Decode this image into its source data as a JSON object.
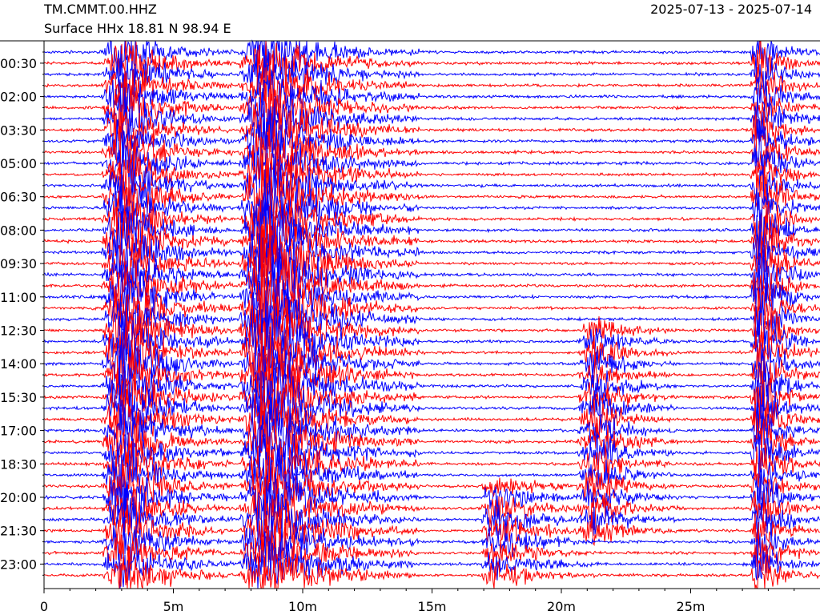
{
  "header": {
    "station": "TM.CMMT.00.HHZ",
    "channel": "Surface HHx  18.81 N 98.94 E",
    "date_range": "2025-07-13 - 2025-07-14"
  },
  "colors": {
    "blue": "#0000ff",
    "red": "#ff0000",
    "axis": "#000000"
  },
  "chart_data": {
    "type": "line",
    "title": "TM.CMMT.00.HHZ",
    "subtitle": "Surface HHx  18.81 N 98.94 E",
    "xlabel": "",
    "ylabel": "",
    "x_unit": "minutes",
    "xlim": [
      0,
      30
    ],
    "x_ticks": [
      {
        "value": 0,
        "label": "0"
      },
      {
        "value": 5,
        "label": "5m"
      },
      {
        "value": 10,
        "label": "10m"
      },
      {
        "value": 15,
        "label": "15m"
      },
      {
        "value": 20,
        "label": "20m"
      },
      {
        "value": 25,
        "label": "25m"
      }
    ],
    "traces_per_day": 48,
    "trace_interval_minutes": 30,
    "trace_colors": [
      "#0000ff",
      "#ff0000"
    ],
    "y_ticks": [
      {
        "trace": 1,
        "label": "00:30"
      },
      {
        "trace": 4,
        "label": "02:00"
      },
      {
        "trace": 7,
        "label": "03:30"
      },
      {
        "trace": 10,
        "label": "05:00"
      },
      {
        "trace": 13,
        "label": "06:30"
      },
      {
        "trace": 16,
        "label": "08:00"
      },
      {
        "trace": 19,
        "label": "09:30"
      },
      {
        "trace": 22,
        "label": "11:00"
      },
      {
        "trace": 25,
        "label": "12:30"
      },
      {
        "trace": 28,
        "label": "14:00"
      },
      {
        "trace": 31,
        "label": "15:30"
      },
      {
        "trace": 34,
        "label": "17:00"
      },
      {
        "trace": 37,
        "label": "18:30"
      },
      {
        "trace": 40,
        "label": "20:00"
      },
      {
        "trace": 43,
        "label": "21:30"
      },
      {
        "trace": 46,
        "label": "23:00"
      }
    ],
    "events": [
      {
        "name": "large-burst-1",
        "trace_start": 0,
        "trace_end": 48,
        "x_start": 2.2,
        "x_peak": 3.0,
        "x_end": 7.3,
        "amplitude": 5
      },
      {
        "name": "large-burst-2",
        "trace_start": 0,
        "trace_end": 48,
        "x_start": 7.5,
        "x_peak": 8.5,
        "x_end": 14.5,
        "amplitude": 6
      },
      {
        "name": "burst-3",
        "trace_start": 25,
        "trace_end": 44,
        "x_start": 20.6,
        "x_peak": 21.3,
        "x_end": 24.5,
        "amplitude": 3
      },
      {
        "name": "burst-4",
        "trace_start": 39,
        "trace_end": 48,
        "x_start": 16.9,
        "x_peak": 17.3,
        "x_end": 21.5,
        "amplitude": 3
      },
      {
        "name": "burst-5",
        "trace_start": 0,
        "trace_end": 48,
        "x_start": 27.3,
        "x_peak": 27.6,
        "x_end": 30.0,
        "amplitude": 5
      }
    ]
  }
}
